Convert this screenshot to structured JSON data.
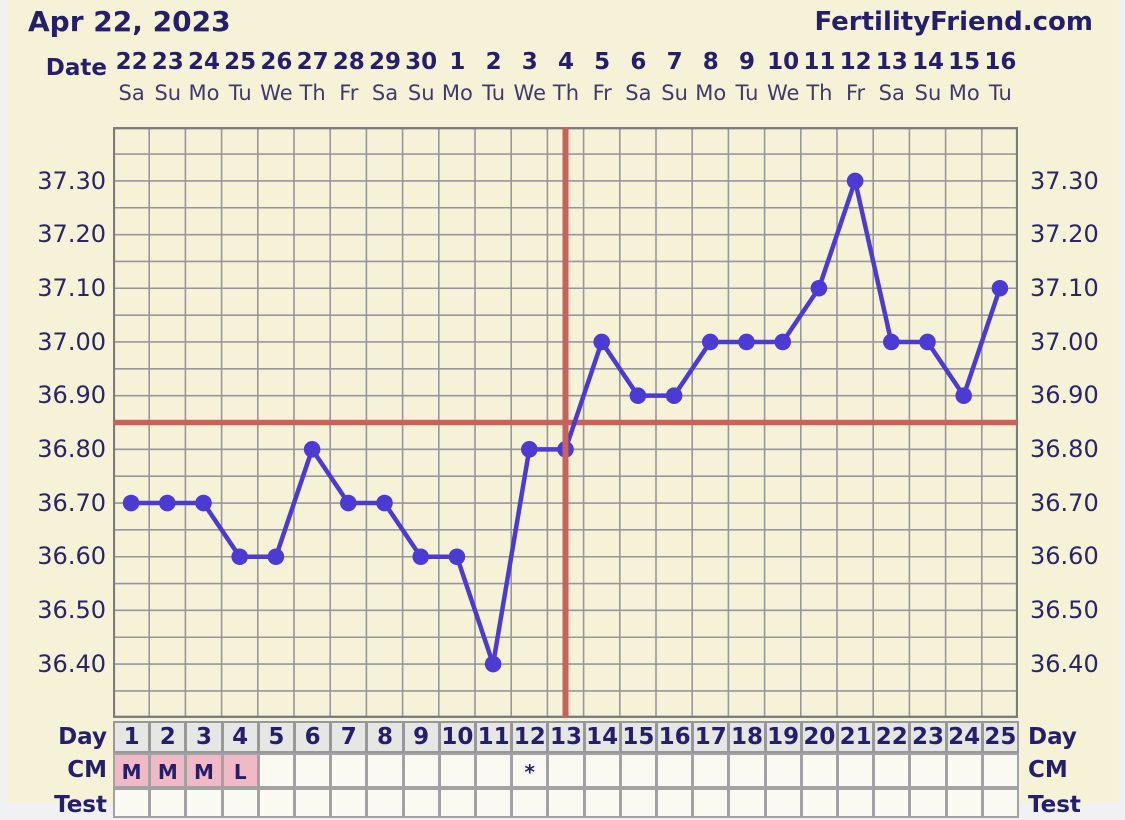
{
  "header": {
    "date_title": "Apr 22, 2023",
    "brand": "FertilityFriend.com"
  },
  "axis": {
    "date_label": "Date",
    "dates": [
      "22",
      "23",
      "24",
      "25",
      "26",
      "27",
      "28",
      "29",
      "30",
      "1",
      "2",
      "3",
      "4",
      "5",
      "6",
      "7",
      "8",
      "9",
      "10",
      "11",
      "12",
      "13",
      "14",
      "15",
      "16"
    ],
    "weekdays": [
      "Sa",
      "Su",
      "Mo",
      "Tu",
      "We",
      "Th",
      "Fr",
      "Sa",
      "Su",
      "Mo",
      "Tu",
      "We",
      "Th",
      "Fr",
      "Sa",
      "Su",
      "Mo",
      "Tu",
      "We",
      "Th",
      "Fr",
      "Sa",
      "Su",
      "Mo",
      "Tu"
    ],
    "y_tick_labels": [
      "37.30",
      "37.20",
      "37.10",
      "37.00",
      "36.90",
      "36.80",
      "36.70",
      "36.60",
      "36.50",
      "36.40"
    ]
  },
  "bottom_table": {
    "day_label": "Day",
    "day_numbers": [
      "1",
      "2",
      "3",
      "4",
      "5",
      "6",
      "7",
      "8",
      "9",
      "10",
      "11",
      "12",
      "13",
      "14",
      "15",
      "16",
      "17",
      "18",
      "19",
      "20",
      "21",
      "22",
      "23",
      "24",
      "25"
    ],
    "cm_label": "CM",
    "cm_values": [
      "M",
      "M",
      "M",
      "L",
      "",
      "",
      "",
      "",
      "",
      "",
      "",
      "*",
      "",
      "",
      "",
      "",
      "",
      "",
      "",
      "",
      "",
      "",
      "",
      "",
      ""
    ],
    "cm_pink_days": [
      1,
      2,
      3,
      4
    ],
    "test_label": "Test"
  },
  "chart_data": {
    "type": "line",
    "x_days": [
      1,
      2,
      3,
      4,
      5,
      6,
      7,
      8,
      9,
      10,
      11,
      12,
      13,
      14,
      15,
      16,
      17,
      18,
      19,
      20,
      21,
      22,
      23,
      24,
      25
    ],
    "temperatures_celsius": [
      36.7,
      36.7,
      36.7,
      36.6,
      36.6,
      36.8,
      36.7,
      36.7,
      36.6,
      36.6,
      36.4,
      36.8,
      36.8,
      37.0,
      36.9,
      36.9,
      37.0,
      37.0,
      37.0,
      37.1,
      37.3,
      37.0,
      37.0,
      36.9,
      37.1
    ],
    "ylim": [
      36.3,
      37.4
    ],
    "y_gridline_step": 0.05,
    "y_label_step": 0.1,
    "coverline_temp": 36.85,
    "ovulation_line_day": 13,
    "grid": true,
    "legend": "none"
  },
  "colors": {
    "page_bg": "#f1f1f3",
    "panel_bg": "#f5f2d8",
    "navy_text": "#241e6b",
    "weekday_text": "#403a69",
    "ytick_text": "#2b2566",
    "grid_line": "#97979b",
    "chart_border": "#7b7b7e",
    "temperature_line": "#4c3bd2",
    "special_lines_red": "#c8625a",
    "day_cell_bg": "#e6e6e4",
    "cm_cell_bg": "#fbfaf2",
    "cm_pink_bg": "#f1b9c6"
  }
}
